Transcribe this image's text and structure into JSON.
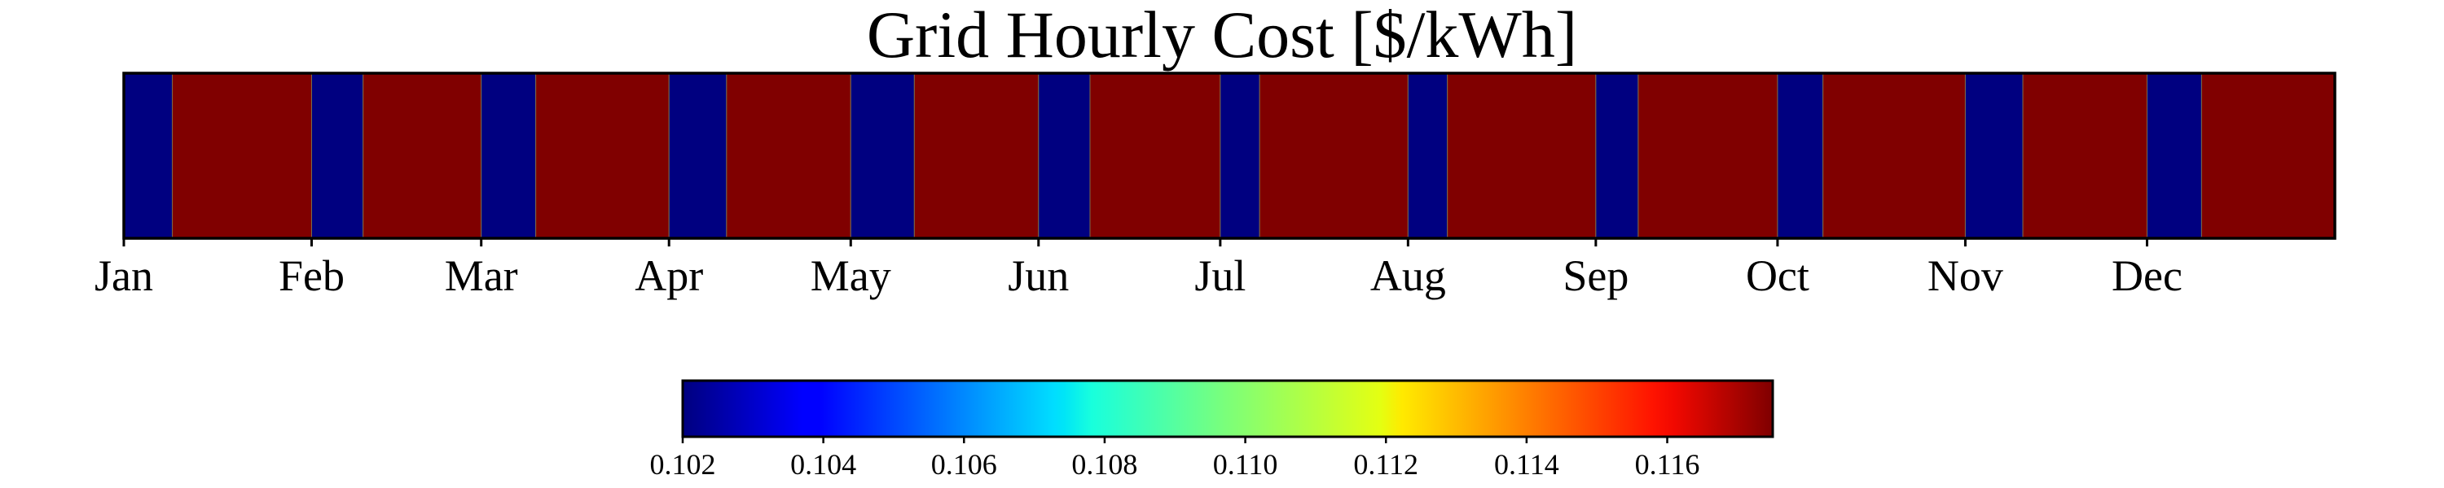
{
  "chart_data": {
    "type": "heatmap",
    "title": "Grid Hourly Cost [$/kWh]",
    "colormap": "jet",
    "x_ticks": [
      "Jan",
      "Feb",
      "Mar",
      "Apr",
      "May",
      "Jun",
      "Jul",
      "Aug",
      "Sep",
      "Oct",
      "Nov",
      "Dec"
    ],
    "x_tick_days": [
      0,
      31,
      59,
      90,
      120,
      151,
      181,
      212,
      243,
      273,
      304,
      334
    ],
    "xlim": [
      0,
      365
    ],
    "segments": [
      {
        "start": 0,
        "end": 8,
        "value": 0.102
      },
      {
        "start": 8,
        "end": 31,
        "value": 0.1175
      },
      {
        "start": 31,
        "end": 39.5,
        "value": 0.102
      },
      {
        "start": 39.5,
        "end": 59,
        "value": 0.1175
      },
      {
        "start": 59,
        "end": 68,
        "value": 0.102
      },
      {
        "start": 68,
        "end": 90,
        "value": 0.1175
      },
      {
        "start": 90,
        "end": 99.5,
        "value": 0.102
      },
      {
        "start": 99.5,
        "end": 120,
        "value": 0.1175
      },
      {
        "start": 120,
        "end": 130.5,
        "value": 0.102
      },
      {
        "start": 130.5,
        "end": 151,
        "value": 0.1175
      },
      {
        "start": 151,
        "end": 159.5,
        "value": 0.102
      },
      {
        "start": 159.5,
        "end": 181,
        "value": 0.1175
      },
      {
        "start": 181,
        "end": 187.5,
        "value": 0.102
      },
      {
        "start": 187.5,
        "end": 212,
        "value": 0.1175
      },
      {
        "start": 212,
        "end": 218.5,
        "value": 0.102
      },
      {
        "start": 218.5,
        "end": 243,
        "value": 0.1175
      },
      {
        "start": 243,
        "end": 250,
        "value": 0.102
      },
      {
        "start": 250,
        "end": 273,
        "value": 0.1175
      },
      {
        "start": 273,
        "end": 280.5,
        "value": 0.102
      },
      {
        "start": 280.5,
        "end": 304,
        "value": 0.1175
      },
      {
        "start": 304,
        "end": 313.5,
        "value": 0.102
      },
      {
        "start": 313.5,
        "end": 334,
        "value": 0.1175
      },
      {
        "start": 334,
        "end": 343,
        "value": 0.102
      },
      {
        "start": 343,
        "end": 365,
        "value": 0.1175
      }
    ],
    "colorbar": {
      "range": [
        0.102,
        0.1175
      ],
      "ticks": [
        0.102,
        0.104,
        0.106,
        0.108,
        0.11,
        0.112,
        0.114,
        0.116
      ],
      "tick_labels": [
        "0.102",
        "0.104",
        "0.106",
        "0.108",
        "0.110",
        "0.112",
        "0.114",
        "0.116"
      ],
      "orientation": "horizontal",
      "placement": "bottom"
    },
    "y_axis": "none",
    "grid": false
  }
}
